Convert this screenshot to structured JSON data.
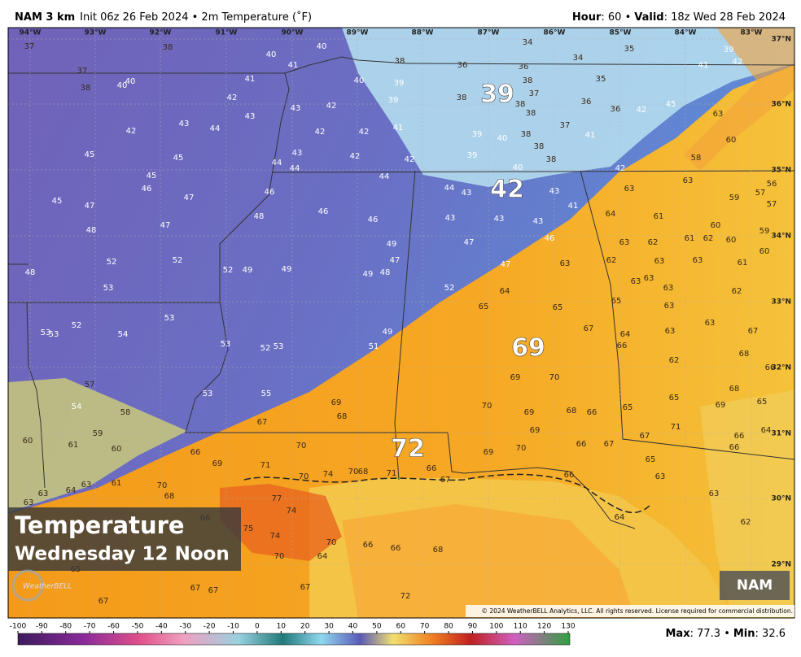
{
  "header": {
    "model": "NAM 3 km",
    "subtitle": "Init 06z 26 Feb 2024 • 2m Temperature (˚F)",
    "hour_label": "Hour",
    "hour_value": ": 60 •",
    "valid_label": "Valid",
    "valid_value": ": 18z Wed 28 Feb 2024"
  },
  "longitude_labels": [
    "94°W",
    "93°W",
    "92°W",
    "91°W",
    "90°W",
    "89°W",
    "88°W",
    "87°W",
    "86°W",
    "85°W",
    "84°W",
    "83°W"
  ],
  "latitude_labels": [
    "37°N",
    "36°N",
    "35°N",
    "34°N",
    "33°N",
    "32°N",
    "31°N",
    "30°N",
    "29°N"
  ],
  "highlights": [
    39,
    42,
    69,
    72
  ],
  "stations": [
    37,
    38,
    40,
    41,
    40,
    38,
    36,
    34,
    36,
    34,
    35,
    39,
    42,
    41,
    37,
    38,
    40,
    40,
    41,
    40,
    39,
    38,
    35,
    37,
    38,
    38,
    36,
    36,
    42,
    45,
    63,
    42,
    43,
    42,
    39,
    38,
    37,
    43,
    44,
    43,
    42,
    42,
    42,
    41,
    39,
    40,
    38,
    38,
    38,
    41,
    60,
    45,
    45,
    43,
    42,
    42,
    39,
    40,
    42,
    58,
    44,
    44,
    44,
    45,
    46,
    47,
    46,
    44,
    43,
    43,
    63,
    63,
    56,
    57,
    59,
    57,
    45,
    47,
    48,
    46,
    46,
    43,
    43,
    43,
    41,
    64,
    61,
    60,
    59,
    47,
    48,
    46,
    47,
    49,
    61,
    62,
    60,
    62,
    63,
    60,
    52,
    52,
    52,
    49,
    49,
    47,
    47,
    63,
    62,
    63,
    63,
    61,
    48,
    49,
    48,
    53,
    52,
    64,
    63,
    63,
    63,
    62,
    53,
    52,
    54,
    53,
    53,
    65,
    65,
    65,
    63,
    63,
    67,
    67,
    64,
    63,
    53,
    52,
    53,
    49,
    51,
    66,
    62,
    68,
    66,
    69,
    70,
    53,
    55,
    57,
    54,
    58,
    69,
    68,
    70,
    69,
    68,
    66,
    65,
    65,
    69,
    68,
    65,
    67,
    59,
    69,
    71,
    66,
    64,
    66,
    60,
    61,
    60,
    66,
    69,
    71,
    70,
    70,
    74,
    70,
    68,
    71,
    69,
    70,
    66,
    67,
    67,
    65,
    66,
    67,
    66,
    63,
    61,
    70,
    68,
    64,
    63,
    63,
    77,
    74,
    66,
    63,
    63,
    62,
    64,
    75,
    74,
    70,
    66,
    66,
    68,
    64,
    70,
    65,
    67,
    67,
    67,
    72,
    67
  ],
  "overlay": {
    "title": "Temperature",
    "subtitle": "Wednesday 12 Noon",
    "model_badge": "NAM",
    "logo": "WeatherBELL",
    "copyright": "© 2024 WeatherBELL Analytics, LLC. All rights reserved. License required for commercial distribution."
  },
  "colorbar": {
    "ticks": [
      -100,
      -90,
      -80,
      -70,
      -60,
      -50,
      -40,
      -30,
      -20,
      -10,
      0,
      10,
      20,
      30,
      40,
      50,
      60,
      70,
      80,
      90,
      100,
      110,
      120,
      130
    ]
  },
  "stats": {
    "max_label": "Max",
    "max_value": ": 77.3 •",
    "min_label": "Min",
    "min_value": ": 32.6"
  }
}
